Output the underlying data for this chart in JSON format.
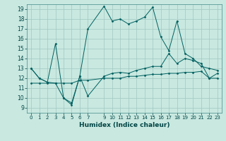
{
  "xlabel": "Humidex (Indice chaleur)",
  "bg_color": "#c8e8e0",
  "line_color": "#006060",
  "grid_color": "#a0c8c0",
  "xlim": [
    -0.5,
    23.5
  ],
  "ylim": [
    8.5,
    19.5
  ],
  "xticks": [
    0,
    1,
    2,
    3,
    4,
    5,
    6,
    7,
    9,
    10,
    11,
    12,
    13,
    14,
    15,
    16,
    17,
    18,
    19,
    20,
    21,
    22,
    23
  ],
  "yticks": [
    9,
    10,
    11,
    12,
    13,
    14,
    15,
    16,
    17,
    18,
    19
  ],
  "line_volatile_x": [
    0,
    1,
    2,
    3,
    4,
    5,
    6,
    7,
    9,
    10,
    11,
    12,
    13,
    14,
    15,
    16,
    17,
    18,
    19,
    20,
    21,
    22,
    23
  ],
  "line_volatile_y": [
    13.0,
    12.0,
    11.6,
    15.5,
    10.0,
    9.3,
    12.2,
    17.0,
    19.3,
    17.8,
    18.0,
    17.5,
    17.8,
    18.2,
    19.2,
    16.2,
    14.8,
    17.8,
    14.5,
    14.0,
    13.2,
    13.0,
    12.8
  ],
  "line_mid_x": [
    0,
    1,
    2,
    3,
    4,
    5,
    6,
    7,
    9,
    10,
    11,
    12,
    13,
    14,
    15,
    16,
    17,
    18,
    19,
    20,
    21,
    22,
    23
  ],
  "line_mid_y": [
    13.0,
    12.0,
    11.6,
    11.5,
    10.0,
    9.5,
    12.2,
    10.2,
    12.2,
    12.5,
    12.6,
    12.5,
    12.8,
    13.0,
    13.2,
    13.2,
    14.5,
    13.5,
    14.0,
    13.8,
    13.5,
    12.0,
    12.5
  ],
  "line_low_x": [
    0,
    1,
    2,
    3,
    4,
    5,
    6,
    7,
    9,
    10,
    11,
    12,
    13,
    14,
    15,
    16,
    17,
    18,
    19,
    20,
    21,
    22,
    23
  ],
  "line_low_y": [
    11.5,
    11.5,
    11.5,
    11.5,
    11.5,
    11.5,
    11.8,
    11.8,
    12.0,
    12.0,
    12.0,
    12.2,
    12.2,
    12.3,
    12.4,
    12.4,
    12.5,
    12.5,
    12.6,
    12.6,
    12.7,
    12.0,
    12.0
  ]
}
